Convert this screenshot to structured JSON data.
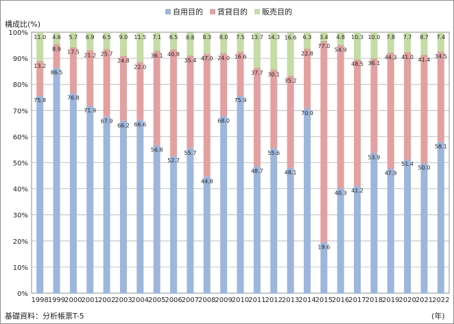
{
  "chart_data": {
    "type": "bar",
    "stacked": true,
    "categories": [
      "1998",
      "1999",
      "2000",
      "2001",
      "2002",
      "2003",
      "2004",
      "2005",
      "2006",
      "2007",
      "2008",
      "2009",
      "2010",
      "2011",
      "2012",
      "2013",
      "2014",
      "2015",
      "2016",
      "2017",
      "2018",
      "2019",
      "2020",
      "2021",
      "2022"
    ],
    "series": [
      {
        "name": "自用目的",
        "color": "#9cb6dc",
        "values": [
          75.8,
          86.5,
          76.8,
          71.9,
          67.9,
          66.2,
          66.6,
          56.8,
          52.7,
          55.7,
          44.8,
          68.0,
          75.9,
          48.7,
          55.6,
          48.1,
          70.9,
          19.6,
          40.3,
          41.2,
          53.9,
          47.9,
          51.4,
          50.0,
          58.1
        ]
      },
      {
        "name": "賃貸目的",
        "color": "#e3a0a0",
        "values": [
          13.2,
          8.9,
          17.5,
          21.2,
          25.7,
          24.8,
          22.0,
          36.1,
          40.8,
          35.4,
          47.0,
          24.0,
          16.6,
          37.7,
          30.1,
          35.2,
          22.8,
          77.0,
          54.9,
          48.5,
          36.1,
          44.3,
          41.0,
          41.4,
          34.5
        ]
      },
      {
        "name": "販売目的",
        "color": "#c5dca5",
        "values": [
          11.0,
          4.6,
          5.7,
          6.9,
          6.5,
          9.0,
          11.5,
          7.1,
          6.5,
          8.8,
          8.3,
          8.0,
          7.5,
          13.7,
          14.3,
          16.6,
          6.3,
          3.4,
          4.8,
          10.3,
          10.0,
          7.8,
          7.7,
          8.7,
          7.4
        ]
      }
    ],
    "ylabel": "構成比(%)",
    "xlabel": "(年)",
    "ylim": [
      0,
      100
    ],
    "yticks": [
      "0%",
      "10%",
      "20%",
      "30%",
      "40%",
      "50%",
      "60%",
      "70%",
      "80%",
      "90%",
      "100%"
    ],
    "grid": true,
    "legend_position": "top-center"
  },
  "footnote": "基礎資料：分析帳票T-5"
}
